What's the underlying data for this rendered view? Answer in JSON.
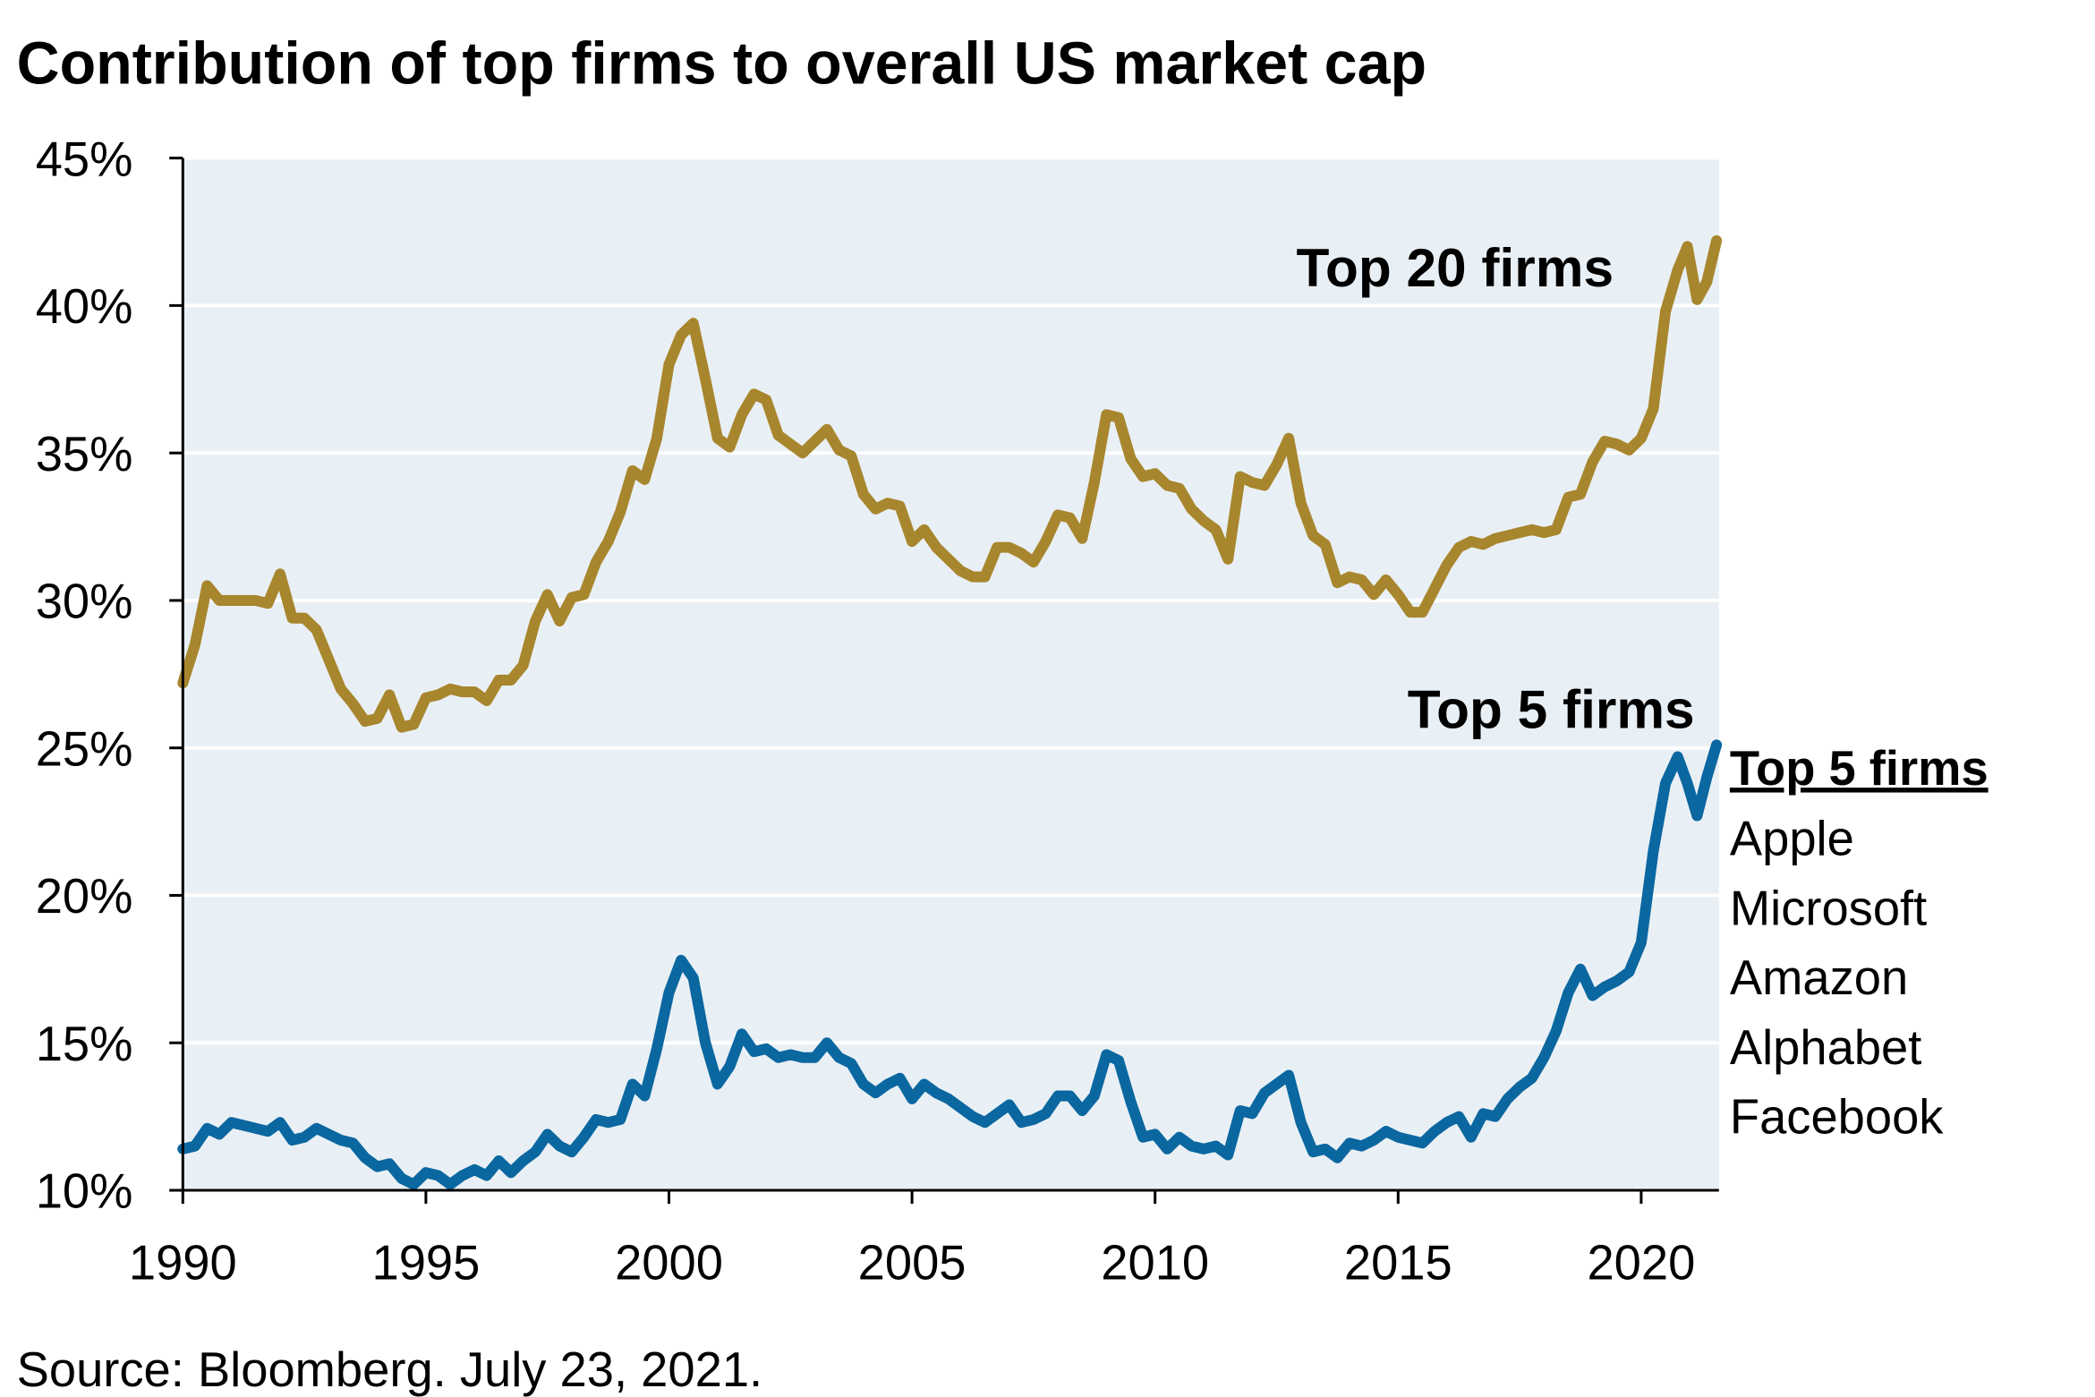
{
  "chart_data": {
    "type": "line",
    "title": "Contribution of top firms to overall US market cap",
    "source": "Source: Bloomberg. July 23, 2021.",
    "legend_title": "Top 5 firms",
    "legend_items": [
      "Apple",
      "Microsoft",
      "Amazon",
      "Alphabet",
      "Facebook"
    ],
    "x": [
      1990,
      1990.25,
      1990.5,
      1990.75,
      1991,
      1991.25,
      1991.5,
      1991.75,
      1992,
      1992.25,
      1992.5,
      1992.75,
      1993,
      1993.25,
      1993.5,
      1993.75,
      1994,
      1994.25,
      1994.5,
      1994.75,
      1995,
      1995.25,
      1995.5,
      1995.75,
      1996,
      1996.25,
      1996.5,
      1996.75,
      1997,
      1997.25,
      1997.5,
      1997.75,
      1998,
      1998.25,
      1998.5,
      1998.75,
      1999,
      1999.25,
      1999.5,
      1999.75,
      2000,
      2000.25,
      2000.5,
      2000.75,
      2001,
      2001.25,
      2001.5,
      2001.75,
      2002,
      2002.25,
      2002.5,
      2002.75,
      2003,
      2003.25,
      2003.5,
      2003.75,
      2004,
      2004.25,
      2004.5,
      2004.75,
      2005,
      2005.25,
      2005.5,
      2005.75,
      2006,
      2006.25,
      2006.5,
      2006.75,
      2007,
      2007.25,
      2007.5,
      2007.75,
      2008,
      2008.25,
      2008.5,
      2008.75,
      2009,
      2009.25,
      2009.5,
      2009.75,
      2010,
      2010.25,
      2010.5,
      2010.75,
      2011,
      2011.25,
      2011.5,
      2011.75,
      2012,
      2012.25,
      2012.5,
      2012.75,
      2013,
      2013.25,
      2013.5,
      2013.75,
      2014,
      2014.25,
      2014.5,
      2014.75,
      2015,
      2015.25,
      2015.5,
      2015.75,
      2016,
      2016.25,
      2016.5,
      2016.75,
      2017,
      2017.25,
      2017.5,
      2017.75,
      2018,
      2018.25,
      2018.5,
      2018.75,
      2019,
      2019.25,
      2019.5,
      2019.75,
      2020,
      2020.25,
      2020.5,
      2020.75,
      2020.95,
      2021.15,
      2021.35,
      2021.55
    ],
    "series": [
      {
        "name": "Top 20 firms",
        "color": "#a8862e",
        "values": [
          27.2,
          28.5,
          30.5,
          30.0,
          30.0,
          30.0,
          30.0,
          29.9,
          30.9,
          29.4,
          29.4,
          29.0,
          28.0,
          27.0,
          26.5,
          25.9,
          26.0,
          26.8,
          25.7,
          25.8,
          26.7,
          26.8,
          27.0,
          26.9,
          26.9,
          26.6,
          27.3,
          27.3,
          27.8,
          29.3,
          30.2,
          29.3,
          30.1,
          30.2,
          31.3,
          32.0,
          33.0,
          34.4,
          34.1,
          35.5,
          38.0,
          39.0,
          39.4,
          37.5,
          35.5,
          35.2,
          36.3,
          37.0,
          36.8,
          35.6,
          35.3,
          35.0,
          35.4,
          35.8,
          35.1,
          34.9,
          33.6,
          33.1,
          33.3,
          33.2,
          32.0,
          32.4,
          31.8,
          31.4,
          31.0,
          30.8,
          30.8,
          31.8,
          31.8,
          31.6,
          31.3,
          32.0,
          32.9,
          32.8,
          32.1,
          34.0,
          36.3,
          36.2,
          34.8,
          34.2,
          34.3,
          33.9,
          33.8,
          33.1,
          32.7,
          32.4,
          31.4,
          34.2,
          34.0,
          33.9,
          34.6,
          35.5,
          33.3,
          32.2,
          31.9,
          30.6,
          30.8,
          30.7,
          30.2,
          30.7,
          30.2,
          29.6,
          29.6,
          30.4,
          31.2,
          31.8,
          32.0,
          31.9,
          32.1,
          32.2,
          32.3,
          32.4,
          32.3,
          32.4,
          33.5,
          33.6,
          34.7,
          35.4,
          35.3,
          35.1,
          35.5,
          36.5,
          39.8,
          41.2,
          42.0,
          40.2,
          40.8,
          42.2
        ]
      },
      {
        "name": "Top 5 firms",
        "color": "#0b67a0",
        "values": [
          11.4,
          11.5,
          12.1,
          11.9,
          12.3,
          12.2,
          12.1,
          12.0,
          12.3,
          11.7,
          11.8,
          12.1,
          11.9,
          11.7,
          11.6,
          11.1,
          10.8,
          10.9,
          10.4,
          10.2,
          10.6,
          10.5,
          10.2,
          10.5,
          10.7,
          10.5,
          11.0,
          10.6,
          11.0,
          11.3,
          11.9,
          11.5,
          11.3,
          11.8,
          12.4,
          12.3,
          12.4,
          13.6,
          13.2,
          14.8,
          16.7,
          17.8,
          17.2,
          15.0,
          13.6,
          14.2,
          15.3,
          14.7,
          14.8,
          14.5,
          14.6,
          14.5,
          14.5,
          15.0,
          14.5,
          14.3,
          13.6,
          13.3,
          13.6,
          13.8,
          13.1,
          13.6,
          13.3,
          13.1,
          12.8,
          12.5,
          12.3,
          12.6,
          12.9,
          12.3,
          12.4,
          12.6,
          13.2,
          13.2,
          12.7,
          13.2,
          14.6,
          14.4,
          13.0,
          11.8,
          11.9,
          11.4,
          11.8,
          11.5,
          11.4,
          11.5,
          11.2,
          12.7,
          12.6,
          13.3,
          13.6,
          13.9,
          12.3,
          11.3,
          11.4,
          11.1,
          11.6,
          11.5,
          11.7,
          12.0,
          11.8,
          11.7,
          11.6,
          12.0,
          12.3,
          12.5,
          11.8,
          12.6,
          12.5,
          13.1,
          13.5,
          13.8,
          14.5,
          15.4,
          16.7,
          17.5,
          16.6,
          16.9,
          17.1,
          17.4,
          18.4,
          21.5,
          23.8,
          24.7,
          23.8,
          22.7,
          24.0,
          25.1
        ]
      }
    ],
    "xlim": [
      1990,
      2021.6
    ],
    "xticks": [
      1990,
      1995,
      2000,
      2005,
      2010,
      2015,
      2020
    ],
    "ylim": [
      10,
      45
    ],
    "yticks": [
      {
        "value": 10,
        "label": "10%"
      },
      {
        "value": 15,
        "label": "15%"
      },
      {
        "value": 20,
        "label": "20%"
      },
      {
        "value": 25,
        "label": "25%"
      },
      {
        "value": 30,
        "label": "30%"
      },
      {
        "value": 35,
        "label": "35%"
      },
      {
        "value": 40,
        "label": "40%"
      },
      {
        "value": 45,
        "label": "45%"
      }
    ],
    "grid": true
  }
}
